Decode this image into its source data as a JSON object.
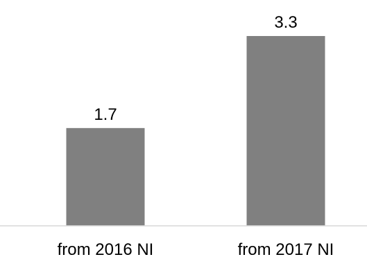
{
  "chart_data": {
    "type": "bar",
    "categories": [
      "from 2016 NI",
      "from 2017 NI"
    ],
    "values": [
      1.7,
      3.3
    ],
    "value_labels": [
      "1.7",
      "3.3"
    ],
    "title": "",
    "xlabel": "",
    "ylabel": "",
    "ylim": [
      0,
      3.3
    ],
    "grid": false,
    "legend": "none",
    "bar_color": "#808080",
    "axis_color": "#d9d9d9"
  }
}
